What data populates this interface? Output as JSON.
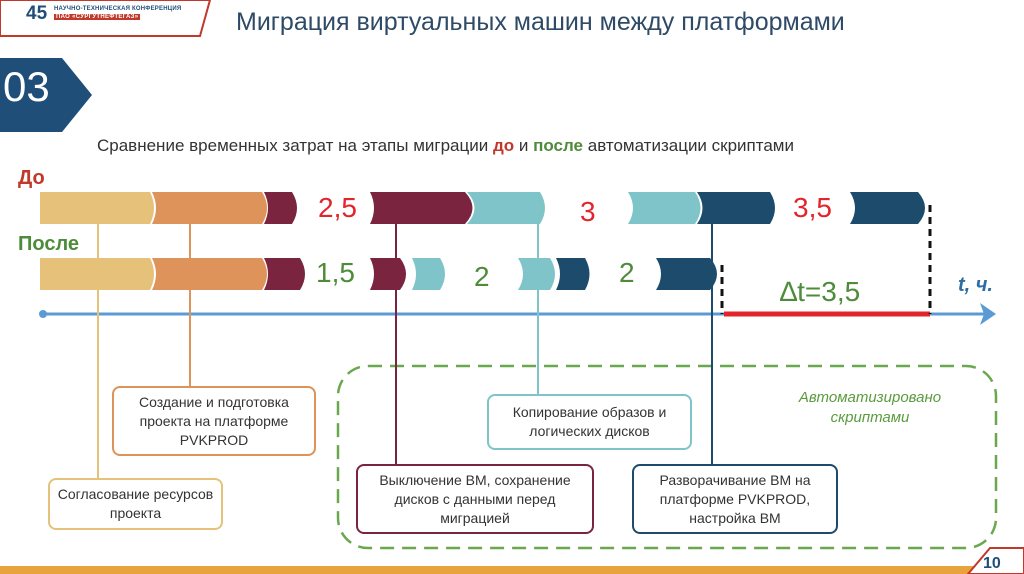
{
  "logo": {
    "number": "45",
    "line1": "НАУЧНО-ТЕХНИЧЕСКАЯ КОНФЕРЕНЦИЯ",
    "line2": "ПАО «СУРГУТНЕФТЕГАЗ»"
  },
  "title": "Миграция виртуальных машин между платформами",
  "section_number": "03",
  "subtitle": {
    "part1": "Сравнение временных затрат на этапы миграции ",
    "before_word": "до",
    "part2": " и ",
    "after_word": "после",
    "part3": " автоматизации скриптами"
  },
  "rows": {
    "before": "До",
    "after": "После"
  },
  "durations": {
    "before": [
      "2,5",
      "3",
      "3,5"
    ],
    "after": [
      "1,5",
      "2",
      "2"
    ]
  },
  "delta": "∆t=3,5",
  "axis_unit": "t, ч.",
  "auto_label": "Автоматизировано скриптами",
  "stages": {
    "agree": "Согласование ресурсов проекта",
    "create": "Создание и подготовка проекта на платформе  PVKPROD",
    "shutdown": "Выключение ВМ, сохранение дисков с данными перед миграцией",
    "copy": "Копирование образов и логических дисков",
    "deploy": "Разворачивание ВМ на платформе PVKPROD, настройка ВМ"
  },
  "colors": {
    "tan": "#e6c17a",
    "orange": "#dd9359",
    "maroon": "#7a2440",
    "teal": "#7fc4c9",
    "navy": "#1d4b6b",
    "axis": "#5b9bd5",
    "red": "#e3242b",
    "green": "#6aa84f"
  },
  "page": "10"
}
